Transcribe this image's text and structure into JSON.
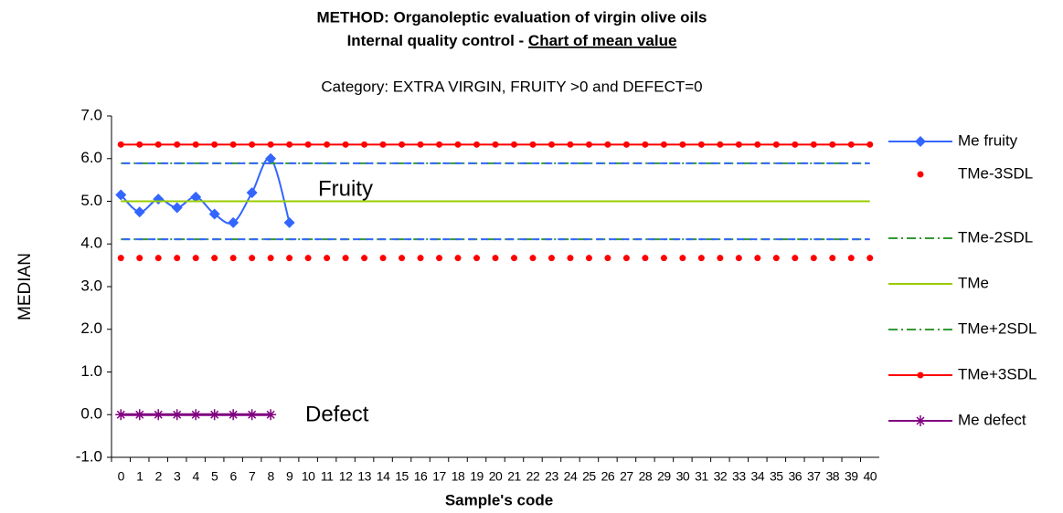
{
  "chart_data": {
    "type": "line",
    "title": "METHOD: Organoleptic evaluation of virgin olive oils",
    "title_line2": "Internal quality control - ",
    "title_underlined": "Chart of mean value",
    "subtitle": "Category: EXTRA VIRGIN, FRUITY >0 and  DEFECT=0",
    "y_label": "MEDIAN",
    "x_label": "Sample's code",
    "annotations": [
      "Fruity",
      "Defect"
    ],
    "categories": [
      "0",
      "1",
      "2",
      "3",
      "4",
      "5",
      "6",
      "7",
      "8",
      "9",
      "10",
      "11",
      "12",
      "13",
      "14",
      "15",
      "16",
      "17",
      "18",
      "19",
      "20",
      "21",
      "22",
      "23",
      "24",
      "25",
      "26",
      "27",
      "28",
      "29",
      "30",
      "31",
      "32",
      "33",
      "34",
      "35",
      "36",
      "37",
      "38",
      "39",
      "40"
    ],
    "series": [
      {
        "name": "Me fruity",
        "color": "#3366ff",
        "style": "diamond-line",
        "values": [
          5.15,
          4.75,
          5.05,
          4.85,
          5.1,
          4.7,
          4.5,
          5.2,
          6.0,
          4.5,
          null,
          null,
          null,
          null,
          null,
          null,
          null,
          null,
          null,
          null,
          null,
          null,
          null,
          null,
          null,
          null,
          null,
          null,
          null,
          null,
          null,
          null,
          null,
          null,
          null,
          null,
          null,
          null,
          null,
          null,
          null
        ]
      },
      {
        "name": "TMe-3SDL",
        "color": "#ff0000",
        "style": "dots",
        "values": [
          3.67,
          3.67,
          3.67,
          3.67,
          3.67,
          3.67,
          3.67,
          3.67,
          3.67,
          3.67,
          3.67,
          3.67,
          3.67,
          3.67,
          3.67,
          3.67,
          3.67,
          3.67,
          3.67,
          3.67,
          3.67,
          3.67,
          3.67,
          3.67,
          3.67,
          3.67,
          3.67,
          3.67,
          3.67,
          3.67,
          3.67,
          3.67,
          3.67,
          3.67,
          3.67,
          3.67,
          3.67,
          3.67,
          3.67,
          3.67,
          3.67
        ]
      },
      {
        "name": "TMe-2SDL",
        "color": "#339933",
        "style": "dashdot",
        "values": [
          4.11,
          4.11,
          4.11,
          4.11,
          4.11,
          4.11,
          4.11,
          4.11,
          4.11,
          4.11,
          4.11,
          4.11,
          4.11,
          4.11,
          4.11,
          4.11,
          4.11,
          4.11,
          4.11,
          4.11,
          4.11,
          4.11,
          4.11,
          4.11,
          4.11,
          4.11,
          4.11,
          4.11,
          4.11,
          4.11,
          4.11,
          4.11,
          4.11,
          4.11,
          4.11,
          4.11,
          4.11,
          4.11,
          4.11,
          4.11,
          4.11
        ]
      },
      {
        "name": "TMe",
        "color": "#99cc00",
        "style": "line",
        "values": [
          5,
          5,
          5,
          5,
          5,
          5,
          5,
          5,
          5,
          5,
          5,
          5,
          5,
          5,
          5,
          5,
          5,
          5,
          5,
          5,
          5,
          5,
          5,
          5,
          5,
          5,
          5,
          5,
          5,
          5,
          5,
          5,
          5,
          5,
          5,
          5,
          5,
          5,
          5,
          5,
          5
        ]
      },
      {
        "name": "TMe+2SDL",
        "color": "#339933",
        "style": "dashdot",
        "values": [
          5.89,
          5.89,
          5.89,
          5.89,
          5.89,
          5.89,
          5.89,
          5.89,
          5.89,
          5.89,
          5.89,
          5.89,
          5.89,
          5.89,
          5.89,
          5.89,
          5.89,
          5.89,
          5.89,
          5.89,
          5.89,
          5.89,
          5.89,
          5.89,
          5.89,
          5.89,
          5.89,
          5.89,
          5.89,
          5.89,
          5.89,
          5.89,
          5.89,
          5.89,
          5.89,
          5.89,
          5.89,
          5.89,
          5.89,
          5.89,
          5.89
        ]
      },
      {
        "name": "TMe+3SDL",
        "color": "#ff0000",
        "style": "dot-line",
        "values": [
          6.33,
          6.33,
          6.33,
          6.33,
          6.33,
          6.33,
          6.33,
          6.33,
          6.33,
          6.33,
          6.33,
          6.33,
          6.33,
          6.33,
          6.33,
          6.33,
          6.33,
          6.33,
          6.33,
          6.33,
          6.33,
          6.33,
          6.33,
          6.33,
          6.33,
          6.33,
          6.33,
          6.33,
          6.33,
          6.33,
          6.33,
          6.33,
          6.33,
          6.33,
          6.33,
          6.33,
          6.33,
          6.33,
          6.33,
          6.33,
          6.33
        ]
      },
      {
        "name": "Me defect",
        "color": "#800080",
        "style": "star-line",
        "values": [
          0,
          0,
          0,
          0,
          0,
          0,
          0,
          0,
          0,
          null,
          null,
          null,
          null,
          null,
          null,
          null,
          null,
          null,
          null,
          null,
          null,
          null,
          null,
          null,
          null,
          null,
          null,
          null,
          null,
          null,
          null,
          null,
          null,
          null,
          null,
          null,
          null,
          null,
          null,
          null,
          null
        ]
      }
    ],
    "ylim": [
      -1,
      7
    ],
    "yticks": [
      {
        "value": -1,
        "label": "-1.0"
      },
      {
        "value": 0,
        "label": "0.0"
      },
      {
        "value": 1,
        "label": "1.0"
      },
      {
        "value": 2,
        "label": "2.0"
      },
      {
        "value": 3,
        "label": "3.0"
      },
      {
        "value": 4,
        "label": "4.0"
      },
      {
        "value": 5,
        "label": "5.0"
      },
      {
        "value": 6,
        "label": "6.0"
      },
      {
        "value": 7,
        "label": "7.0"
      }
    ],
    "grid": false,
    "legend": "right"
  }
}
